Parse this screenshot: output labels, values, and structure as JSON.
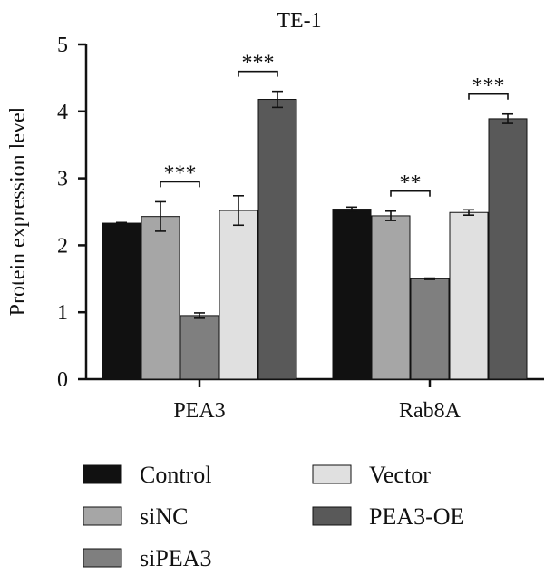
{
  "chart_data": {
    "type": "bar",
    "title": "TE-1",
    "xlabel": "",
    "ylabel": "Protein expression level",
    "ylim": [
      0,
      5
    ],
    "yticks": [
      0,
      1,
      2,
      3,
      4,
      5
    ],
    "categories": [
      "PEA3",
      "Rab8A"
    ],
    "series": [
      {
        "name": "Control",
        "color": "#111111",
        "values": [
          2.33,
          2.54
        ],
        "errors": [
          0.01,
          0.03
        ]
      },
      {
        "name": "siNC",
        "color": "#a6a6a6",
        "values": [
          2.43,
          2.44
        ],
        "errors": [
          0.22,
          0.07
        ]
      },
      {
        "name": "siPEA3",
        "color": "#7f7f7f",
        "values": [
          0.95,
          1.5
        ],
        "errors": [
          0.04,
          0.01
        ]
      },
      {
        "name": "Vector",
        "color": "#e0e0e0",
        "values": [
          2.52,
          2.49
        ],
        "errors": [
          0.22,
          0.04
        ]
      },
      {
        "name": "PEA3-OE",
        "color": "#595959",
        "values": [
          4.18,
          3.89
        ],
        "errors": [
          0.12,
          0.07
        ]
      }
    ],
    "significance": [
      {
        "category": 0,
        "from": 1,
        "to": 2,
        "label": "***"
      },
      {
        "category": 0,
        "from": 3,
        "to": 4,
        "label": "***"
      },
      {
        "category": 1,
        "from": 1,
        "to": 2,
        "label": "**"
      },
      {
        "category": 1,
        "from": 3,
        "to": 4,
        "label": "***"
      }
    ],
    "grid": false,
    "legend_position": "bottom"
  }
}
